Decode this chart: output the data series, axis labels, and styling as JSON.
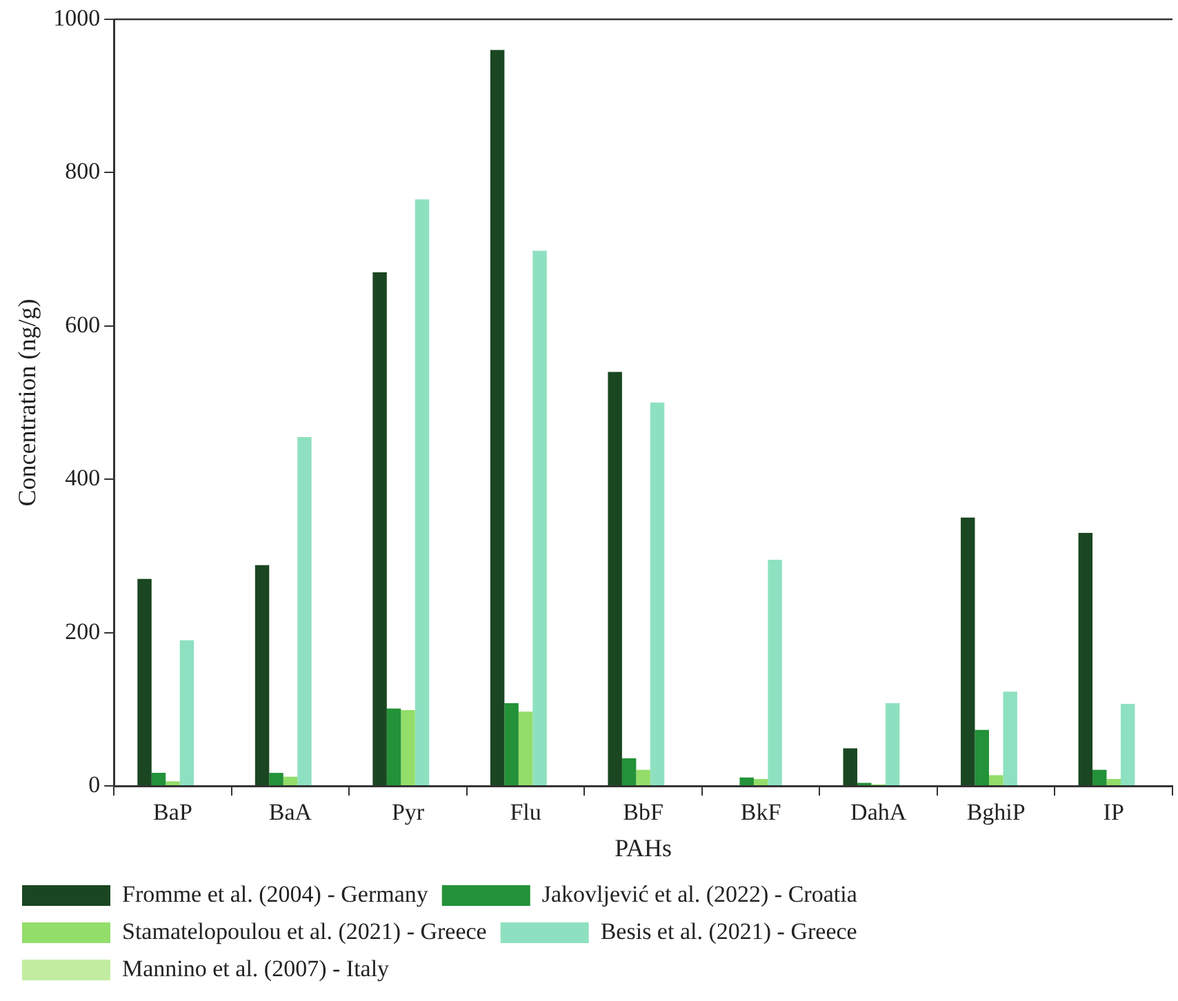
{
  "chart_data": {
    "type": "bar",
    "xlabel": "PAHs",
    "ylabel": "Concentration (ng/g)",
    "categories": [
      "BaP",
      "BaA",
      "Pyr",
      "Flu",
      "BbF",
      "BkF",
      "DahA",
      "BghiP",
      "IP"
    ],
    "series": [
      {
        "name": "Fromme et al. (2004) - Germany",
        "color": "#1a4721",
        "values": [
          270,
          288,
          670,
          960,
          540,
          null,
          49,
          350,
          330
        ]
      },
      {
        "name": "Jakovljević et al. (2022) - Croatia",
        "color": "#239238",
        "values": [
          17,
          17,
          101,
          108,
          36,
          11,
          4,
          73,
          21
        ]
      },
      {
        "name": "Stamatelopoulou et al. (2021) - Greece",
        "color": "#93dd6a",
        "values": [
          6,
          12,
          99,
          97,
          21,
          9,
          2,
          14,
          9
        ]
      },
      {
        "name": "Besis et al. (2021) - Greece",
        "color": "#8ee1c0",
        "values": [
          190,
          455,
          765,
          698,
          500,
          295,
          108,
          123,
          107
        ]
      },
      {
        "name": "Mannino et al. (2007) - Italy",
        "color": "#c2eda0",
        "values": [
          null,
          null,
          null,
          null,
          null,
          null,
          null,
          null,
          null
        ]
      }
    ],
    "ylim": [
      0,
      1000
    ],
    "yticks": [
      0,
      200,
      400,
      600,
      800,
      1000
    ],
    "grid": false,
    "legend": "bottom"
  }
}
